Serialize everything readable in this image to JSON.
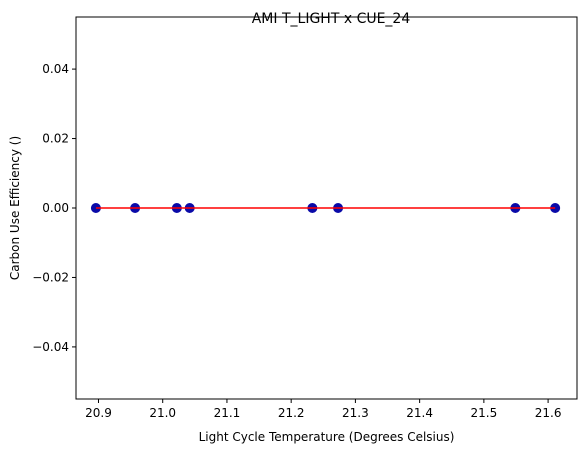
{
  "chart_data": {
    "type": "scatter",
    "title": "AMI T_LIGHT x CUE_24",
    "xlabel": "Light Cycle Temperature (Degrees Celsius)",
    "ylabel": "Carbon Use Efficiency ()",
    "xlim": [
      20.865,
      21.645
    ],
    "ylim": [
      -0.055,
      0.055
    ],
    "xticks": [
      20.9,
      21.0,
      21.1,
      21.2,
      21.3,
      21.4,
      21.5,
      21.6
    ],
    "xtick_labels": [
      "20.9",
      "21.0",
      "21.1",
      "21.2",
      "21.3",
      "21.4",
      "21.5",
      "21.6"
    ],
    "yticks": [
      -0.04,
      -0.02,
      0.0,
      0.02,
      0.04
    ],
    "ytick_labels": [
      "−0.04",
      "−0.02",
      "0.00",
      "0.02",
      "0.04"
    ],
    "grid": false,
    "series": [
      {
        "marker": "circle",
        "color": "#0a0aa8",
        "points": [
          {
            "x": 20.896,
            "y": 0.0
          },
          {
            "x": 20.957,
            "y": 0.0
          },
          {
            "x": 21.022,
            "y": 0.0
          },
          {
            "x": 21.042,
            "y": 0.0
          },
          {
            "x": 21.233,
            "y": 0.0
          },
          {
            "x": 21.273,
            "y": 0.0
          },
          {
            "x": 21.549,
            "y": 0.0
          },
          {
            "x": 21.611,
            "y": 0.0
          }
        ]
      }
    ],
    "fit_line": {
      "color": "#ff0000",
      "x": [
        20.896,
        21.611
      ],
      "y": [
        0.0,
        0.0
      ]
    }
  }
}
